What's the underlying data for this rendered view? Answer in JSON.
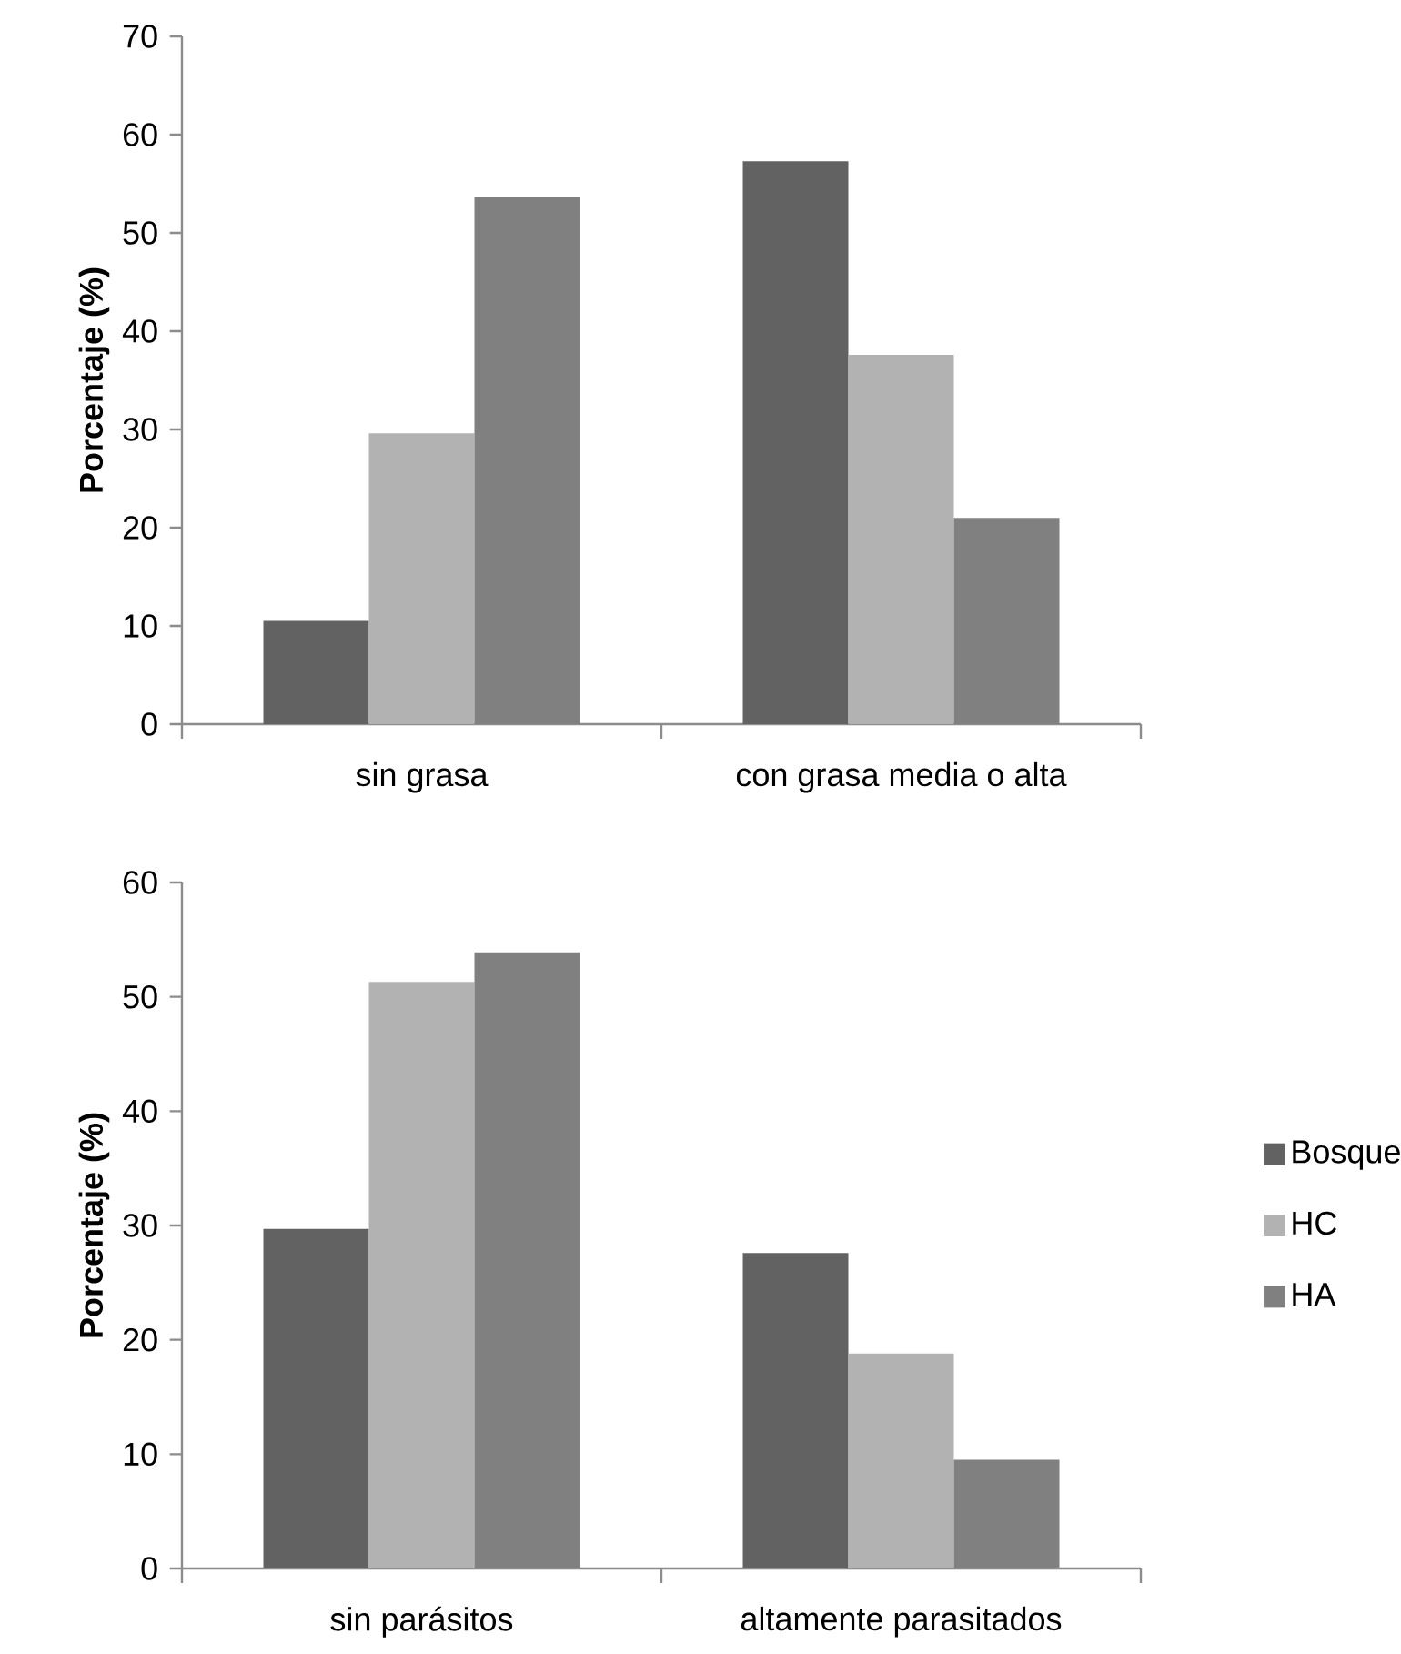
{
  "chart_data": [
    {
      "type": "bar",
      "ylabel": "Porcentaje (%)",
      "categories": [
        "sin grasa",
        "con grasa media o alta"
      ],
      "ylim": [
        0,
        70
      ],
      "yticks": [
        0,
        10,
        20,
        30,
        40,
        50,
        60,
        70
      ],
      "series": [
        {
          "color": "#626262",
          "values": [
            10.5,
            57.3
          ]
        },
        {
          "color": "#b2b2b2",
          "values": [
            29.6,
            37.6
          ]
        },
        {
          "color": "#808080",
          "values": [
            53.7,
            21.0
          ]
        }
      ]
    },
    {
      "type": "bar",
      "ylabel": "Porcentaje (%)",
      "categories": [
        "sin parásitos",
        "altamente parasitados"
      ],
      "ylim": [
        0,
        60
      ],
      "yticks": [
        0,
        10,
        20,
        30,
        40,
        50,
        60
      ],
      "legend": "right",
      "series": [
        {
          "name": "Bosque",
          "color": "#626262",
          "values": [
            29.7,
            27.6
          ]
        },
        {
          "name": "HC",
          "color": "#b2b2b2",
          "values": [
            51.3,
            18.8
          ]
        },
        {
          "name": "HA",
          "color": "#808080",
          "values": [
            53.9,
            9.5
          ]
        }
      ]
    }
  ]
}
